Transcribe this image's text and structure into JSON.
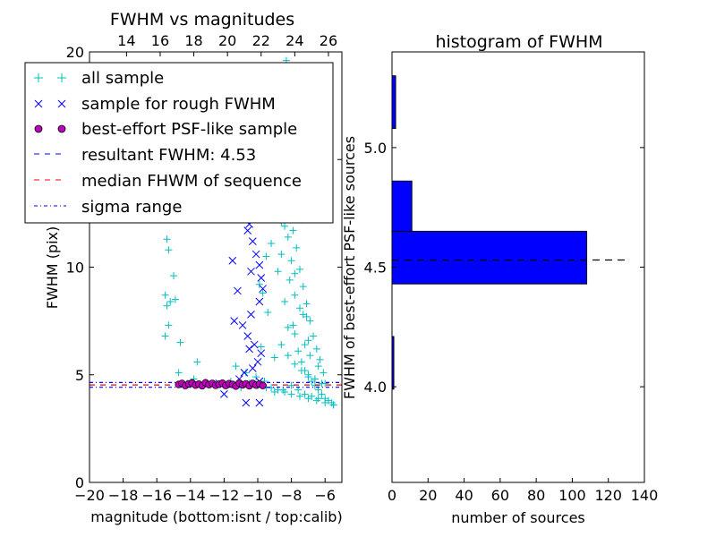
{
  "chart_data": [
    {
      "type": "scatter",
      "title": "FWHM vs magnitudes",
      "xlabel": "magnitude (bottom:isnt / top:calib)",
      "ylabel": "FWHM (pix)",
      "xlim": [
        -20,
        -5
      ],
      "ylim": [
        0,
        20
      ],
      "x_ticks": [
        -20,
        -18,
        -16,
        -14,
        -12,
        -10,
        -8,
        -6
      ],
      "x_tick_labels": [
        "−20",
        "−18",
        "−16",
        "−14",
        "−12",
        "−10",
        "−8",
        "−6"
      ],
      "y_ticks": [
        0,
        5,
        10,
        15,
        20
      ],
      "y_tick_labels": [
        "0",
        "5",
        "10",
        "15",
        "20"
      ],
      "top_axis": {
        "ticks": [
          14,
          16,
          18,
          20,
          22,
          24,
          26
        ],
        "tick_labels": [
          "14",
          "16",
          "18",
          "20",
          "22",
          "24",
          "26"
        ],
        "offset_from_bottom": 31.8
      },
      "grid": false,
      "legend_position": "top-left",
      "legend": [
        {
          "label": "all sample",
          "marker": "plus",
          "color": "#00bfbf"
        },
        {
          "label": "sample for rough FWHM",
          "marker": "x",
          "color": "#0000ff"
        },
        {
          "label": "best-effort PSF-like sample",
          "marker": "circle",
          "color": "#bf00bf"
        },
        {
          "label": "resultant FWHM: 4.53",
          "line": "dashed",
          "color": "#0000ff"
        },
        {
          "label": "median FHWM of sequence",
          "line": "dashed",
          "color": "#ff0000"
        },
        {
          "label": "sigma range",
          "line": "dashdot",
          "color": "#0000ff"
        }
      ],
      "series": [
        {
          "name": "all sample",
          "marker": "plus",
          "color": "#00bfbf",
          "x": [
            -15.5,
            -15.4,
            -15.3,
            -15.5,
            -15.2,
            -15.0,
            -14.9,
            -15.4,
            -15.3,
            -14.6,
            -14.7,
            -14.2,
            -13.6,
            -13.8,
            -11.6,
            -11.3,
            -11.0,
            -10.7,
            -10.4,
            -10.1,
            -9.9,
            -9.7,
            -9.5,
            -9.3,
            -9.6,
            -9.4,
            -9.8,
            -9.2,
            -9.0,
            -9.1,
            -8.8,
            -8.6,
            -8.4,
            -8.2,
            -8.0,
            -7.8,
            -7.6,
            -7.4,
            -7.2,
            -7.0,
            -6.8,
            -6.6,
            -6.4,
            -6.2,
            -6.0,
            -5.8,
            -5.6,
            -5.5,
            -8.9,
            -8.5,
            -8.3,
            -8.1,
            -7.9,
            -7.7,
            -7.5,
            -7.3,
            -7.1,
            -6.9,
            -6.7,
            -6.5,
            -6.3,
            -6.1,
            -8.7,
            -8.2,
            -7.8,
            -7.3,
            -6.9,
            -6.4,
            -6.0,
            -8.4,
            -7.6,
            -7.0,
            -6.6,
            -8.3,
            -8.0,
            -7.7,
            -7.4,
            -8.6,
            -8.1,
            -7.5,
            -7.9,
            -7.2,
            -8.8,
            -8.4,
            -7.8,
            -7.1,
            -9.5,
            -9.0,
            -8.5,
            -8.0,
            -7.5,
            -7.0,
            -6.5,
            -6.0,
            -5.5,
            -10.5,
            -10.0,
            -9.6,
            -9.2,
            -8.8,
            -8.4,
            -8.0,
            -7.6,
            -7.2,
            -6.8,
            -6.4,
            -8.6,
            -8.2,
            -7.8,
            -7.4,
            -7.0,
            -6.6,
            -6.2
          ],
          "y": [
            8.7,
            8.2,
            7.3,
            6.8,
            8.4,
            9.6,
            8.5,
            11.3,
            10.8,
            6.5,
            5.1,
            4.6,
            5.6,
            4.8,
            4.7,
            5.4,
            4.4,
            5.1,
            4.6,
            4.9,
            9.2,
            8.8,
            10.5,
            12.4,
            13.8,
            7.9,
            6.3,
            11.1,
            5.8,
            14.9,
            9.8,
            12.1,
            8.4,
            7.2,
            10.3,
            6.9,
            6.1,
            5.6,
            5.2,
            4.9,
            4.7,
            4.5,
            4.3,
            4.1,
            3.9,
            3.8,
            3.7,
            3.6,
            16.2,
            15.1,
            13.6,
            12.8,
            11.7,
            10.9,
            9.9,
            9.1,
            8.3,
            7.5,
            6.8,
            6.2,
            5.7,
            5.1,
            14.2,
            11.4,
            8.7,
            7.8,
            5.9,
            5.4,
            4.6,
            17.9,
            13.1,
            6.6,
            4.8,
            19.6,
            18.4,
            15.8,
            12.2,
            10.6,
            9.4,
            8.1,
            7.3,
            6.4,
            13.3,
            11.9,
            9.7,
            7.7,
            4.4,
            4.2,
            4.3,
            4.1,
            4.0,
            3.9,
            3.8,
            3.7,
            3.6,
            4.6,
            4.5,
            4.7,
            4.4,
            4.3,
            4.2,
            4.5,
            4.3,
            4.1,
            4.0,
            3.9,
            6.4,
            5.9,
            5.5,
            5.2,
            5.0,
            4.8,
            4.6
          ]
        },
        {
          "name": "sample for rough FWHM",
          "marker": "x",
          "color": "#0000ff",
          "x": [
            -11.0,
            -10.7,
            -10.5,
            -10.3,
            -10.1,
            -9.9,
            -9.8,
            -9.7,
            -9.9,
            -10.4,
            -11.2,
            -11.5,
            -10.9,
            -10.6,
            -10.2,
            -9.8,
            -10.0,
            -10.3,
            -10.8,
            -11.1,
            -9.9,
            -10.4,
            -10.6,
            -12.0,
            -12.3,
            -11.4,
            -10.5,
            -9.9
          ],
          "y": [
            13.1,
            12.6,
            12.0,
            11.2,
            10.6,
            10.1,
            9.5,
            9.0,
            8.4,
            7.8,
            8.9,
            10.3,
            7.3,
            6.8,
            6.4,
            6.0,
            5.6,
            5.3,
            5.1,
            4.8,
            4.7,
            9.8,
            11.7,
            4.1,
            4.6,
            7.5,
            6.2,
            3.7
          ],
          "extra_point": {
            "x": -10.7,
            "y": 3.7
          }
        },
        {
          "name": "best-effort PSF-like sample",
          "marker": "circle",
          "color": "#bf00bf",
          "x": [
            -14.7,
            -14.5,
            -14.3,
            -14.1,
            -13.9,
            -13.7,
            -13.5,
            -13.3,
            -13.1,
            -12.9,
            -12.7,
            -12.5,
            -12.3,
            -12.1,
            -11.9,
            -11.7,
            -11.5,
            -11.3,
            -11.1,
            -10.9,
            -10.7,
            -10.5,
            -10.3,
            -10.1,
            -9.9,
            -9.7
          ],
          "y": [
            4.55,
            4.6,
            4.5,
            4.58,
            4.62,
            4.52,
            4.57,
            4.49,
            4.63,
            4.54,
            4.6,
            4.51,
            4.56,
            4.61,
            4.5,
            4.59,
            4.55,
            4.47,
            4.62,
            4.53,
            4.58,
            4.49,
            4.6,
            4.52,
            4.57,
            4.5
          ]
        }
      ],
      "hlines": [
        {
          "name": "resultant FWHM: 4.53",
          "y": 4.53,
          "style": "dashed",
          "color": "#0000ff"
        },
        {
          "name": "median FHWM of sequence",
          "y": 4.53,
          "style": "dashed",
          "color": "#ff0000"
        },
        {
          "name": "sigma range",
          "y": 4.42,
          "style": "dashdot",
          "color": "#0000ff"
        },
        {
          "name": "sigma range",
          "y": 4.64,
          "style": "dashdot",
          "color": "#0000ff"
        }
      ]
    },
    {
      "type": "bar",
      "orientation": "horizontal",
      "title": "histogram of FWHM",
      "xlabel": "number of sources",
      "ylabel": "FWHM of best-effort PSF-like sources",
      "xlim": [
        0,
        140
      ],
      "ylim": [
        3.6,
        5.4
      ],
      "x_ticks": [
        0,
        20,
        40,
        60,
        80,
        100,
        120,
        140
      ],
      "x_tick_labels": [
        "0",
        "20",
        "40",
        "60",
        "80",
        "100",
        "120",
        "140"
      ],
      "y_ticks": [
        4.0,
        4.5,
        5.0
      ],
      "y_tick_labels": [
        "4.0",
        "4.5",
        "5.0"
      ],
      "bar_color": "#0000ff",
      "bins": [
        {
          "from": 3.99,
          "to": 4.21,
          "count": 1
        },
        {
          "from": 4.21,
          "to": 4.43,
          "count": 0
        },
        {
          "from": 4.43,
          "to": 4.65,
          "count": 108
        },
        {
          "from": 4.65,
          "to": 4.86,
          "count": 11
        },
        {
          "from": 4.86,
          "to": 5.08,
          "count": 0
        },
        {
          "from": 5.08,
          "to": 5.3,
          "count": 2
        }
      ],
      "hline": {
        "y": 4.53,
        "x_from": 0,
        "x_to": 130,
        "style": "dashed",
        "color": "#000000"
      }
    }
  ]
}
